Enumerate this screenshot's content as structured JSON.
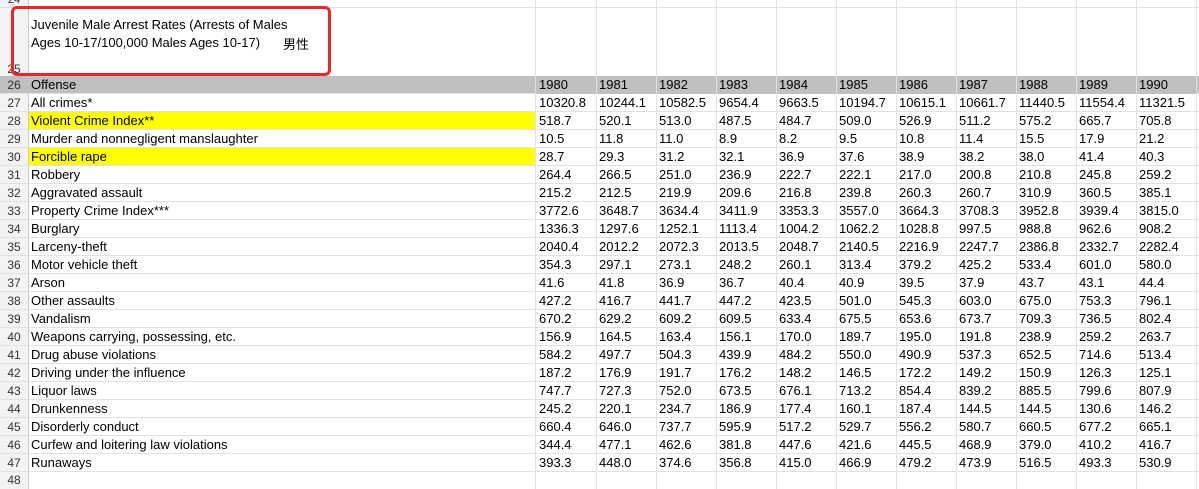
{
  "top_row_num": "24",
  "title_row_num": "25",
  "last_row_num": "48",
  "title": "Juvenile Male Arrest Rates (Arrests of Males Ages 10-17/100,000 Males Ages 10-17)",
  "title_cjk": "男性",
  "header": {
    "row_num": "26",
    "offense": "Offense",
    "years": [
      "1980",
      "1981",
      "1982",
      "1983",
      "1984",
      "1985",
      "1986",
      "1987",
      "1988",
      "1989",
      "1990"
    ]
  },
  "rows": [
    {
      "num": "27",
      "offense": "All crimes*",
      "highlight": false,
      "values": [
        "10320.8",
        "10244.1",
        "10582.5",
        "9654.4",
        "9663.5",
        "10194.7",
        "10615.1",
        "10661.7",
        "11440.5",
        "11554.4",
        "11321.5"
      ]
    },
    {
      "num": "28",
      "offense": "Violent Crime Index**",
      "highlight": true,
      "values": [
        "518.7",
        "520.1",
        "513.0",
        "487.5",
        "484.7",
        "509.0",
        "526.9",
        "511.2",
        "575.2",
        "665.7",
        "705.8"
      ]
    },
    {
      "num": "29",
      "offense": "Murder and nonnegligent manslaughter",
      "highlight": false,
      "values": [
        "10.5",
        "11.8",
        "11.0",
        "8.9",
        "8.2",
        "9.5",
        "10.8",
        "11.4",
        "15.5",
        "17.9",
        "21.2"
      ]
    },
    {
      "num": "30",
      "offense": "Forcible rape",
      "highlight": true,
      "values": [
        "28.7",
        "29.3",
        "31.2",
        "32.1",
        "36.9",
        "37.6",
        "38.9",
        "38.2",
        "38.0",
        "41.4",
        "40.3"
      ]
    },
    {
      "num": "31",
      "offense": "Robbery",
      "highlight": false,
      "values": [
        "264.4",
        "266.5",
        "251.0",
        "236.9",
        "222.7",
        "222.1",
        "217.0",
        "200.8",
        "210.8",
        "245.8",
        "259.2"
      ]
    },
    {
      "num": "32",
      "offense": "Aggravated assault",
      "highlight": false,
      "values": [
        "215.2",
        "212.5",
        "219.9",
        "209.6",
        "216.8",
        "239.8",
        "260.3",
        "260.7",
        "310.9",
        "360.5",
        "385.1"
      ]
    },
    {
      "num": "33",
      "offense": "Property Crime Index***",
      "highlight": false,
      "values": [
        "3772.6",
        "3648.7",
        "3634.4",
        "3411.9",
        "3353.3",
        "3557.0",
        "3664.3",
        "3708.3",
        "3952.8",
        "3939.4",
        "3815.0"
      ]
    },
    {
      "num": "34",
      "offense": "Burglary",
      "highlight": false,
      "values": [
        "1336.3",
        "1297.6",
        "1252.1",
        "1113.4",
        "1004.2",
        "1062.2",
        "1028.8",
        "997.5",
        "988.8",
        "962.6",
        "908.2"
      ]
    },
    {
      "num": "35",
      "offense": "Larceny-theft",
      "highlight": false,
      "values": [
        "2040.4",
        "2012.2",
        "2072.3",
        "2013.5",
        "2048.7",
        "2140.5",
        "2216.9",
        "2247.7",
        "2386.8",
        "2332.7",
        "2282.4"
      ]
    },
    {
      "num": "36",
      "offense": "Motor vehicle theft",
      "highlight": false,
      "values": [
        "354.3",
        "297.1",
        "273.1",
        "248.2",
        "260.1",
        "313.4",
        "379.2",
        "425.2",
        "533.4",
        "601.0",
        "580.0"
      ]
    },
    {
      "num": "37",
      "offense": "Arson",
      "highlight": false,
      "values": [
        "41.6",
        "41.8",
        "36.9",
        "36.7",
        "40.4",
        "40.9",
        "39.5",
        "37.9",
        "43.7",
        "43.1",
        "44.4"
      ]
    },
    {
      "num": "38",
      "offense": "Other assaults",
      "highlight": false,
      "values": [
        "427.2",
        "416.7",
        "441.7",
        "447.2",
        "423.5",
        "501.0",
        "545.3",
        "603.0",
        "675.0",
        "753.3",
        "796.1"
      ]
    },
    {
      "num": "39",
      "offense": "Vandalism",
      "highlight": false,
      "values": [
        "670.2",
        "629.2",
        "609.2",
        "609.5",
        "633.4",
        "675.5",
        "653.6",
        "673.7",
        "709.3",
        "736.5",
        "802.4"
      ]
    },
    {
      "num": "40",
      "offense": "Weapons carrying, possessing, etc.",
      "highlight": false,
      "values": [
        "156.9",
        "164.5",
        "163.4",
        "156.1",
        "170.0",
        "189.7",
        "195.0",
        "191.8",
        "238.9",
        "259.2",
        "263.7"
      ]
    },
    {
      "num": "41",
      "offense": "Drug abuse violations",
      "highlight": false,
      "values": [
        "584.2",
        "497.7",
        "504.3",
        "439.9",
        "484.2",
        "550.0",
        "490.9",
        "537.3",
        "652.5",
        "714.6",
        "513.4"
      ]
    },
    {
      "num": "42",
      "offense": "Driving under the influence",
      "highlight": false,
      "values": [
        "187.2",
        "176.9",
        "191.7",
        "176.2",
        "148.2",
        "146.5",
        "172.2",
        "149.2",
        "150.9",
        "126.3",
        "125.1"
      ]
    },
    {
      "num": "43",
      "offense": "Liquor laws",
      "highlight": false,
      "values": [
        "747.7",
        "727.3",
        "752.0",
        "673.5",
        "676.1",
        "713.2",
        "854.4",
        "839.2",
        "885.5",
        "799.6",
        "807.9"
      ]
    },
    {
      "num": "44",
      "offense": "Drunkenness",
      "highlight": false,
      "values": [
        "245.2",
        "220.1",
        "234.7",
        "186.9",
        "177.4",
        "160.1",
        "187.4",
        "144.5",
        "144.5",
        "130.6",
        "146.2"
      ]
    },
    {
      "num": "45",
      "offense": "Disorderly conduct",
      "highlight": false,
      "values": [
        "660.4",
        "646.0",
        "737.7",
        "595.9",
        "517.2",
        "529.7",
        "556.2",
        "580.7",
        "660.5",
        "677.2",
        "665.1"
      ]
    },
    {
      "num": "46",
      "offense": "Curfew and loitering law violations",
      "highlight": false,
      "values": [
        "344.4",
        "477.1",
        "462.6",
        "381.8",
        "447.6",
        "421.6",
        "445.5",
        "468.9",
        "379.0",
        "410.2",
        "416.7"
      ]
    },
    {
      "num": "47",
      "offense": "Runaways",
      "highlight": false,
      "values": [
        "393.3",
        "448.0",
        "374.6",
        "356.8",
        "415.0",
        "466.9",
        "479.2",
        "473.9",
        "516.5",
        "493.3",
        "530.9"
      ]
    }
  ]
}
